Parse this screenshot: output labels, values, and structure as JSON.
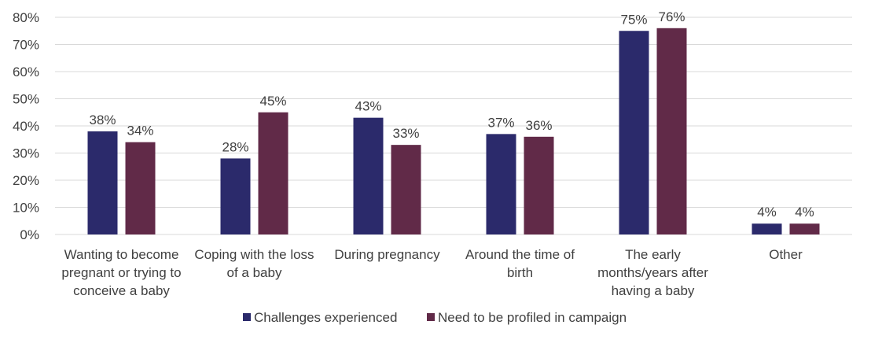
{
  "chart_data": {
    "type": "bar",
    "title": "",
    "xlabel": "",
    "ylabel": "",
    "ylim": [
      0,
      80
    ],
    "y_ticks": [
      0,
      10,
      20,
      30,
      40,
      50,
      60,
      70,
      80
    ],
    "y_tick_labels": [
      "0%",
      "10%",
      "20%",
      "30%",
      "40%",
      "50%",
      "60%",
      "70%",
      "80%"
    ],
    "grid": "horizontal",
    "legend_position": "bottom",
    "categories": [
      [
        "Wanting to become",
        "pregnant or trying to",
        "conceive a baby"
      ],
      [
        "Coping with the loss",
        "of a baby"
      ],
      [
        "During pregnancy"
      ],
      [
        "Around the time of",
        "birth"
      ],
      [
        "The early",
        "months/years after",
        "having a baby"
      ],
      [
        "Other"
      ]
    ],
    "series": [
      {
        "name": "Challenges experienced",
        "color": "#2b2a6b",
        "values": [
          38,
          28,
          43,
          37,
          75,
          4
        ],
        "labels": [
          "38%",
          "28%",
          "43%",
          "37%",
          "75%",
          "4%"
        ]
      },
      {
        "name": "Need to be profiled in campaign",
        "color": "#612a48",
        "values": [
          34,
          45,
          33,
          36,
          76,
          4
        ],
        "labels": [
          "34%",
          "45%",
          "33%",
          "36%",
          "76%",
          "4%"
        ]
      }
    ]
  }
}
